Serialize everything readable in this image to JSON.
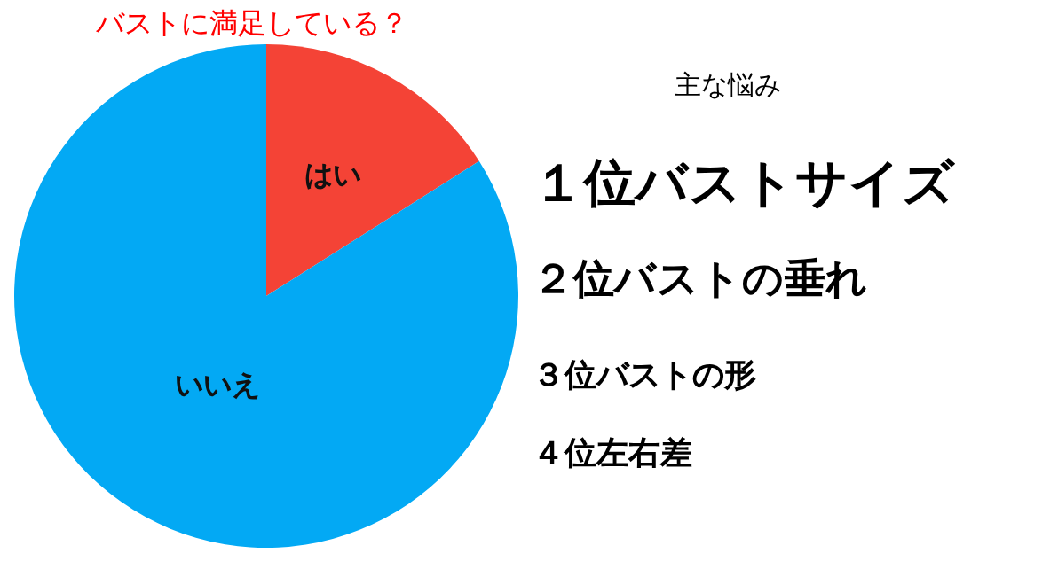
{
  "chart_data": {
    "type": "pie",
    "title": "バストに満足している？",
    "categories": [
      "はい",
      "いいえ"
    ],
    "values": [
      16,
      84
    ],
    "colors": [
      "#f44336",
      "#03a9f4"
    ],
    "subtitle": "主な悩み",
    "annotations": [
      "１位バストサイズ",
      "２位バストの垂れ",
      "３位バストの形",
      "４位左右差"
    ]
  }
}
